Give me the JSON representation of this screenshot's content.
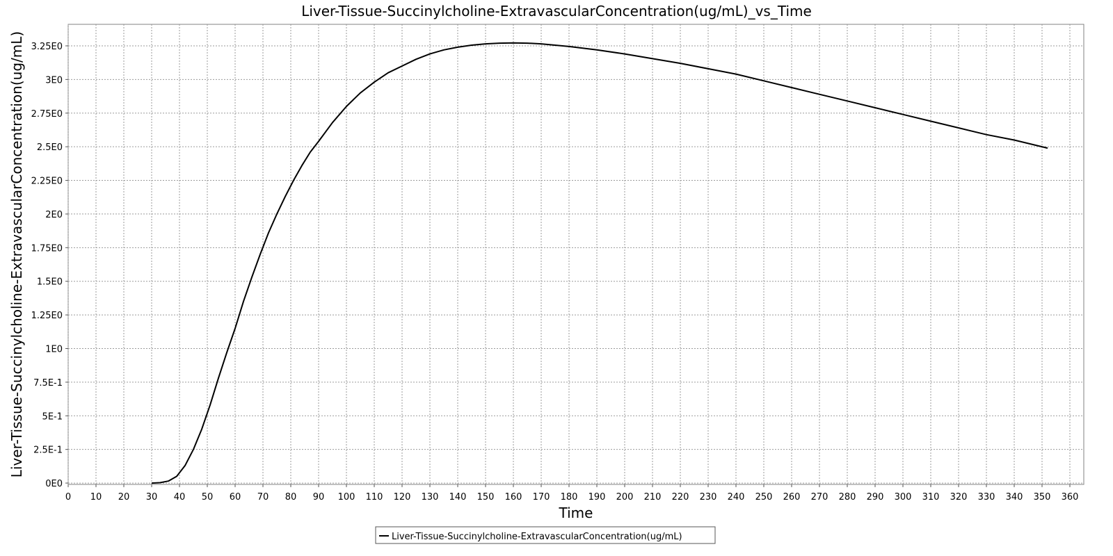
{
  "chart_data": {
    "type": "line",
    "title": "Liver-Tissue-Succinylcholine-ExtravascularConcentration(ug/mL)_vs_Time",
    "xlabel": "Time",
    "ylabel": "Liver-Tissue-Succinylcholine-ExtravascularConcentration(ug/mL)",
    "xlim": [
      0,
      365
    ],
    "ylim": [
      -0.01,
      3.41
    ],
    "x_ticks": [
      0,
      10,
      20,
      30,
      40,
      50,
      60,
      70,
      80,
      90,
      100,
      110,
      120,
      130,
      140,
      150,
      160,
      170,
      180,
      190,
      200,
      210,
      220,
      230,
      240,
      250,
      260,
      270,
      280,
      290,
      300,
      310,
      320,
      330,
      340,
      350,
      360
    ],
    "x_tick_labels": [
      "0",
      "10",
      "20",
      "30",
      "40",
      "50",
      "60",
      "70",
      "80",
      "90",
      "100",
      "110",
      "120",
      "130",
      "140",
      "150",
      "160",
      "170",
      "180",
      "190",
      "200",
      "210",
      "220",
      "230",
      "240",
      "250",
      "260",
      "270",
      "280",
      "290",
      "300",
      "310",
      "320",
      "330",
      "340",
      "350",
      "360"
    ],
    "y_ticks": [
      0,
      0.25,
      0.5,
      0.75,
      1.0,
      1.25,
      1.5,
      1.75,
      2.0,
      2.25,
      2.5,
      2.75,
      3.0,
      3.25
    ],
    "y_tick_labels": [
      "0E0",
      "2.5E-1",
      "5E-1",
      "7.5E-1",
      "1E0",
      "1.25E0",
      "1.5E0",
      "1.75E0",
      "2E0",
      "2.25E0",
      "2.5E0",
      "2.75E0",
      "3E0",
      "3.25E0"
    ],
    "grid": true,
    "legend_position": "bottom-center",
    "series": [
      {
        "name": "Liver-Tissue-Succinylcholine-ExtravascularConcentration(ug/mL)",
        "color": "#000000",
        "x": [
          30,
          33,
          36,
          39,
          42,
          45,
          48,
          51,
          54,
          57,
          60,
          63,
          66,
          69,
          72,
          75,
          78,
          81,
          84,
          87,
          90,
          95,
          100,
          105,
          110,
          115,
          120,
          125,
          130,
          135,
          140,
          145,
          150,
          155,
          160,
          165,
          170,
          180,
          190,
          200,
          210,
          220,
          230,
          240,
          250,
          260,
          270,
          280,
          290,
          300,
          310,
          320,
          330,
          340,
          352
        ],
        "y": [
          0,
          0.003,
          0.015,
          0.05,
          0.13,
          0.25,
          0.4,
          0.58,
          0.78,
          0.97,
          1.15,
          1.35,
          1.53,
          1.7,
          1.86,
          2.0,
          2.13,
          2.25,
          2.36,
          2.46,
          2.54,
          2.68,
          2.8,
          2.9,
          2.98,
          3.05,
          3.1,
          3.15,
          3.19,
          3.22,
          3.24,
          3.255,
          3.265,
          3.27,
          3.272,
          3.27,
          3.265,
          3.245,
          3.22,
          3.19,
          3.155,
          3.12,
          3.08,
          3.04,
          2.99,
          2.94,
          2.89,
          2.84,
          2.79,
          2.74,
          2.69,
          2.64,
          2.59,
          2.55,
          2.49
        ]
      }
    ]
  }
}
